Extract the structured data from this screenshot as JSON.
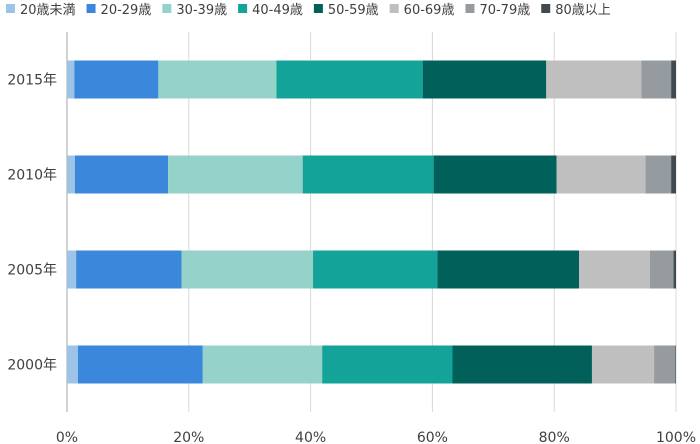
{
  "chart_data": {
    "type": "bar",
    "orientation": "horizontal",
    "stacked": "percent",
    "categories": [
      "2015年",
      "2010年",
      "2005年",
      "2000年"
    ],
    "series": [
      {
        "name": "20歳未満",
        "color": "#9DC3E6",
        "values": [
          1.2,
          1.3,
          1.5,
          1.8
        ]
      },
      {
        "name": "20-29歳",
        "color": "#3A87DC",
        "values": [
          13.8,
          15.3,
          17.3,
          20.5
        ]
      },
      {
        "name": "30-39歳",
        "color": "#94D2CA",
        "values": [
          19.4,
          22.1,
          21.6,
          19.6
        ]
      },
      {
        "name": "40-49歳",
        "color": "#13A398",
        "values": [
          24.0,
          21.5,
          20.4,
          21.4
        ]
      },
      {
        "name": "50-59歳",
        "color": "#01615A",
        "values": [
          20.3,
          20.2,
          23.3,
          22.9
        ]
      },
      {
        "name": "60-69歳",
        "color": "#BFBFBF",
        "values": [
          15.6,
          14.6,
          11.6,
          10.2
        ]
      },
      {
        "name": "70-79歳",
        "color": "#969BA0",
        "values": [
          4.9,
          4.2,
          3.9,
          3.5
        ]
      },
      {
        "name": "80歳以上",
        "color": "#404A50",
        "values": [
          0.8,
          0.8,
          0.4,
          0.1
        ]
      }
    ],
    "xaxis": {
      "ticks": [
        "0%",
        "20%",
        "40%",
        "60%",
        "80%",
        "100%"
      ],
      "range": [
        0,
        100
      ]
    },
    "grid": true,
    "legend": "top"
  }
}
